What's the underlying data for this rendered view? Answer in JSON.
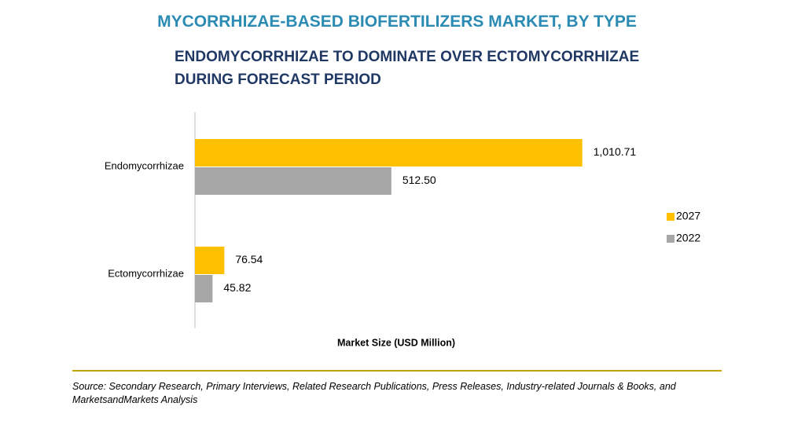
{
  "chart_data": {
    "type": "bar",
    "orientation": "horizontal",
    "title": "MYCORRHIZAE-BASED BIOFERTILIZERS MARKET, BY TYPE",
    "subtitle": "ENDOMYCORRHIZAE TO DOMINATE OVER ECTOMYCORRHIZAE DURING FORECAST PERIOD",
    "x_label": "Market Size (USD Million)",
    "categories": [
      "Endomycorrhizae",
      "Ectomycorrhizae"
    ],
    "series": [
      {
        "name": "2027",
        "color": "#ffc000",
        "values": [
          1010.71,
          76.54
        ],
        "value_labels": [
          "1,010.71",
          "76.54"
        ]
      },
      {
        "name": "2022",
        "color": "#a6a6a6",
        "values": [
          512.5,
          45.82
        ],
        "value_labels": [
          "512.50",
          "45.82"
        ]
      }
    ],
    "xlim": [
      0,
      1200
    ],
    "legend": "right",
    "source": "Source: Secondary Research, Primary Interviews, Related Research Publications, Press Releases, Industry-related Journals & Books, and MarketsandMarkets Analysis"
  }
}
